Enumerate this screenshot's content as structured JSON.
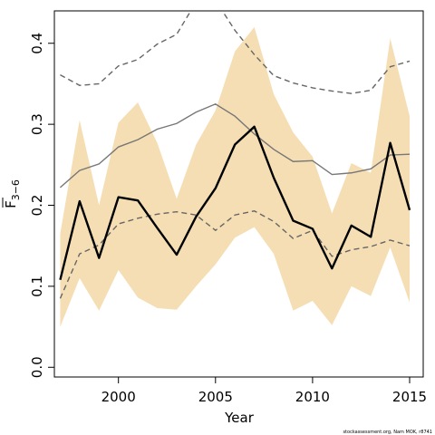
{
  "chart_data": {
    "type": "line",
    "xlabel": "Year",
    "ylabel_main": "F",
    "ylabel_sub": "3−6",
    "xlim": [
      1996.7,
      2015.7
    ],
    "ylim": [
      -0.012,
      0.44
    ],
    "x_ticks": [
      2000,
      2005,
      2010,
      2015
    ],
    "y_ticks": [
      0.0,
      0.1,
      0.2,
      0.3,
      0.4
    ],
    "y_tick_labels": [
      "0.0",
      "0.1",
      "0.2",
      "0.3",
      "0.4"
    ],
    "credit": "stockassessment.org, Nam MOK, r8741",
    "colors": {
      "band": "#f5deb3",
      "estimate": "#000000",
      "reference": "#777777",
      "reference_band": "#666666"
    },
    "x": [
      1997,
      1998,
      1999,
      2000,
      2001,
      2002,
      2003,
      2004,
      2005,
      2006,
      2007,
      2008,
      2009,
      2010,
      2011,
      2012,
      2013,
      2014,
      2015
    ],
    "series": [
      {
        "role": "band_upper",
        "values": [
          0.165,
          0.305,
          0.2,
          0.302,
          0.327,
          0.277,
          0.208,
          0.275,
          0.317,
          0.39,
          0.42,
          0.337,
          0.29,
          0.26,
          0.19,
          0.252,
          0.24,
          0.406,
          0.31
        ]
      },
      {
        "role": "band_lower",
        "values": [
          0.05,
          0.11,
          0.07,
          0.12,
          0.086,
          0.073,
          0.071,
          0.1,
          0.127,
          0.16,
          0.173,
          0.14,
          0.07,
          0.082,
          0.052,
          0.1,
          0.088,
          0.148,
          0.08
        ]
      },
      {
        "role": "estimate",
        "values": [
          0.108,
          0.205,
          0.135,
          0.21,
          0.206,
          0.172,
          0.139,
          0.186,
          0.221,
          0.275,
          0.297,
          0.234,
          0.181,
          0.171,
          0.122,
          0.175,
          0.161,
          0.277,
          0.194
        ]
      },
      {
        "role": "reference",
        "values": [
          0.222,
          0.243,
          0.251,
          0.272,
          0.281,
          0.294,
          0.301,
          0.315,
          0.325,
          0.31,
          0.288,
          0.269,
          0.254,
          0.255,
          0.238,
          0.24,
          0.245,
          0.262,
          0.263
        ]
      },
      {
        "role": "reference_upper",
        "values": [
          0.361,
          0.348,
          0.35,
          0.372,
          0.38,
          0.399,
          0.411,
          0.451,
          0.453,
          0.416,
          0.386,
          0.36,
          0.351,
          0.345,
          0.341,
          0.338,
          0.342,
          0.371,
          0.378
        ]
      },
      {
        "role": "reference_lower",
        "values": [
          0.085,
          0.14,
          0.151,
          0.177,
          0.184,
          0.189,
          0.192,
          0.188,
          0.169,
          0.188,
          0.193,
          0.18,
          0.159,
          0.169,
          0.137,
          0.145,
          0.149,
          0.157,
          0.15
        ]
      }
    ]
  }
}
